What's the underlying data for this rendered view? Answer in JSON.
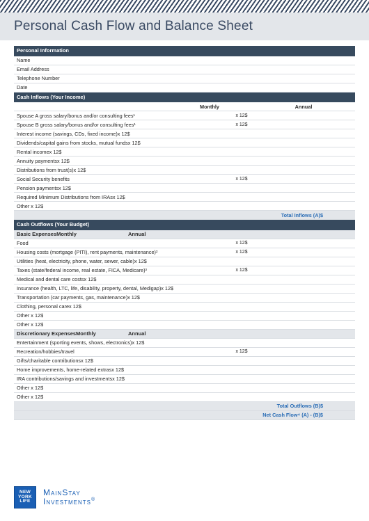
{
  "title": "Personal Cash Flow and Balance Sheet",
  "colors": {
    "header_bg": "#374a5e",
    "band_bg": "#e3e6ea",
    "accent": "#1a5fb4",
    "total_text": "#2a6db6"
  },
  "sections": {
    "personal": {
      "header": "Personal Information",
      "rows": [
        "Name",
        "Email Address",
        "Telephone Number",
        "Date"
      ]
    },
    "inflows": {
      "header": "Cash Inflows (Your Income)",
      "col_monthly": "Monthly",
      "col_annual": "Annual",
      "rows": [
        {
          "label": "Spouse A gross salary/bonus and/or consulting fees¹",
          "mult": "x 12$"
        },
        {
          "label": "Spouse B gross salary/bonus and/or consulting fees¹",
          "mult": "x 12$"
        },
        {
          "label": "Interest income (savings, CDs, fixed income)x 12$",
          "mult": ""
        },
        {
          "label": "Dividends/capital gains from stocks, mutual fundsx 12$",
          "mult": ""
        },
        {
          "label": "Rental incomex 12$",
          "mult": ""
        },
        {
          "label": "Annuity paymentsx 12$",
          "mult": ""
        },
        {
          "label": "Distributions from trust(s)x 12$",
          "mult": ""
        },
        {
          "label": "Social Security benefits",
          "mult": "x 12$"
        },
        {
          "label": "Pension paymentsx 12$",
          "mult": ""
        },
        {
          "label": "Required Minimum Distributions from IRAsx 12$",
          "mult": ""
        },
        {
          "label": "Other x 12$",
          "mult": ""
        }
      ],
      "total_label": "Total Inflows (A)$"
    },
    "outflows": {
      "header": "Cash Outflows (Your Budget)",
      "basic": {
        "sub": "Basic ExpensesMonthly",
        "sub_annual": "Annual",
        "rows": [
          {
            "label": "Food",
            "mult": "x 12$"
          },
          {
            "label": "Housing costs (mortgage (PITI), rent payments, maintenance)²",
            "mult": "x 12$"
          },
          {
            "label": "Utilities (heat, electricity, phone, water, sewer, cable)x 12$",
            "mult": ""
          },
          {
            "label": "Taxes (state/federal income, real estate, FICA, Medicare)³",
            "mult": "x 12$"
          },
          {
            "label": "Medical and dental care costsx 12$",
            "mult": ""
          },
          {
            "label": "Insurance (health, LTC, life, disability, property, dental, Medigap)x 12$",
            "mult": ""
          },
          {
            "label": "Transportation (car payments, gas, maintenance)x 12$",
            "mult": ""
          },
          {
            "label": "Clothing, personal carex 12$",
            "mult": ""
          },
          {
            "label": "Other x 12$",
            "mult": ""
          },
          {
            "label": "Other x 12$",
            "mult": ""
          }
        ]
      },
      "discretionary": {
        "sub": "Discretionary ExpensesMonthly",
        "sub_annual": "Annual",
        "rows": [
          {
            "label": "Entertainment (sporting events, shows, electronics)x 12$",
            "mult": ""
          },
          {
            "label": "Recreation/hobbies/travel",
            "mult": "x 12$"
          },
          {
            "label": "Gifts/charitable contributionsx 12$",
            "mult": ""
          },
          {
            "label": "Home improvements, home-related extrasx 12$",
            "mult": ""
          },
          {
            "label": "IRA contributions/savings and investmentsx 12$",
            "mult": ""
          },
          {
            "label": "Other x 12$",
            "mult": ""
          },
          {
            "label": "Other x 12$",
            "mult": ""
          }
        ]
      },
      "total_outflows": "Total Outflows (B)$",
      "net_cashflow": "Net Cash Flow⁴ (A) - (B)$"
    }
  },
  "footer": {
    "logo_lines": [
      "NEW",
      "YORK",
      "LIFE"
    ],
    "brand_l1": "MainStay",
    "brand_l2": "Investments",
    "reg": "®"
  }
}
